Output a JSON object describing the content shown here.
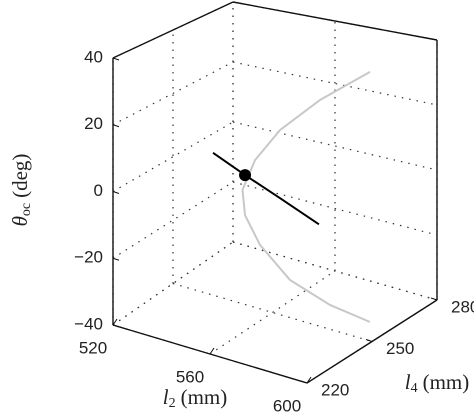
{
  "chart_data": {
    "type": "line3d",
    "zlabel": {
      "symbol": "θ",
      "subscript": "oc",
      "unit": "(deg)"
    },
    "xlabel": {
      "symbol": "l",
      "subscript": "2",
      "unit": "(mm)"
    },
    "ylabel": {
      "symbol": "l",
      "subscript": "4",
      "unit": "(mm)"
    },
    "xlim": [
      520,
      600
    ],
    "xticks": [
      520,
      560,
      600
    ],
    "ylim": [
      220,
      280
    ],
    "yticks": [
      220,
      250,
      280
    ],
    "zlim": [
      -40,
      40
    ],
    "zticks": [
      {
        "value": -40,
        "label": "−40"
      },
      {
        "value": -20,
        "label": "−20"
      },
      0,
      20,
      40
    ],
    "grid": true,
    "series": [
      {
        "color": "#c8c8c8",
        "x": [
          594,
          574,
          558,
          548,
          543,
          544,
          550,
          562,
          578,
          594
        ],
        "y": [
          256,
          256,
          256,
          256,
          256,
          256,
          256,
          256,
          256,
          256
        ],
        "z": [
          38.6,
          26.3,
          13.9,
          2.5,
          -7.9,
          -15.6,
          -23.7,
          -32,
          -36.2,
          -37.9
        ]
      },
      {
        "color": "#000000",
        "x": [
          546,
          559,
          573,
          589
        ],
        "y": [
          238,
          238,
          238,
          238
        ],
        "z": [
          11,
          6.9,
          2.9,
          -1.8
        ]
      }
    ],
    "points": {
      "color": "#000000",
      "x": [
        559
      ],
      "y": [
        238
      ],
      "z": [
        6.9
      ]
    }
  }
}
